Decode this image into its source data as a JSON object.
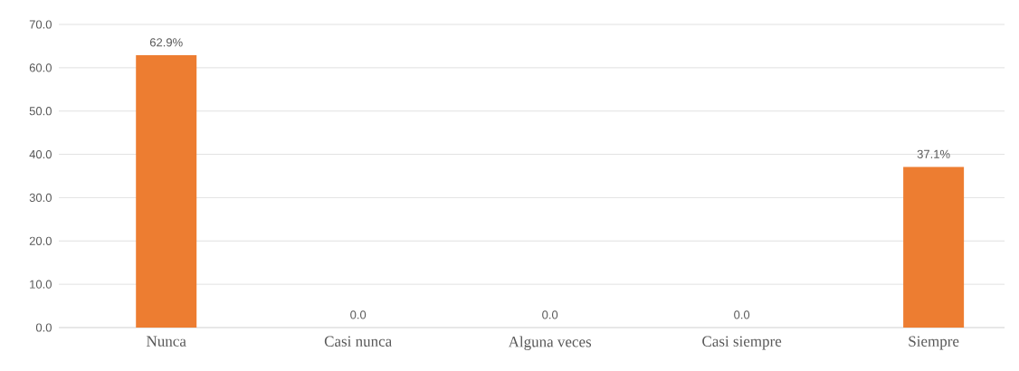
{
  "chart_data": {
    "type": "bar",
    "categories": [
      "Nunca",
      "Casi nunca",
      "Alguna veces",
      "Casi siempre",
      "Siempre"
    ],
    "values": [
      62.9,
      0.0,
      0.0,
      0.0,
      37.1
    ],
    "value_labels": [
      "62.9%",
      "0.0",
      "0.0",
      "0.0",
      "37.1%"
    ],
    "color": "#ed7d31",
    "ylim": [
      0,
      70
    ],
    "yticks": [
      {
        "value": 0,
        "label": "0.0"
      },
      {
        "value": 10,
        "label": "10.0"
      },
      {
        "value": 20,
        "label": "20.0"
      },
      {
        "value": 30,
        "label": "30.0"
      },
      {
        "value": 40,
        "label": "40.0"
      },
      {
        "value": 50,
        "label": "50.0"
      },
      {
        "value": 60,
        "label": "60.0"
      },
      {
        "value": 70,
        "label": "70.0"
      }
    ],
    "grid": "y"
  }
}
